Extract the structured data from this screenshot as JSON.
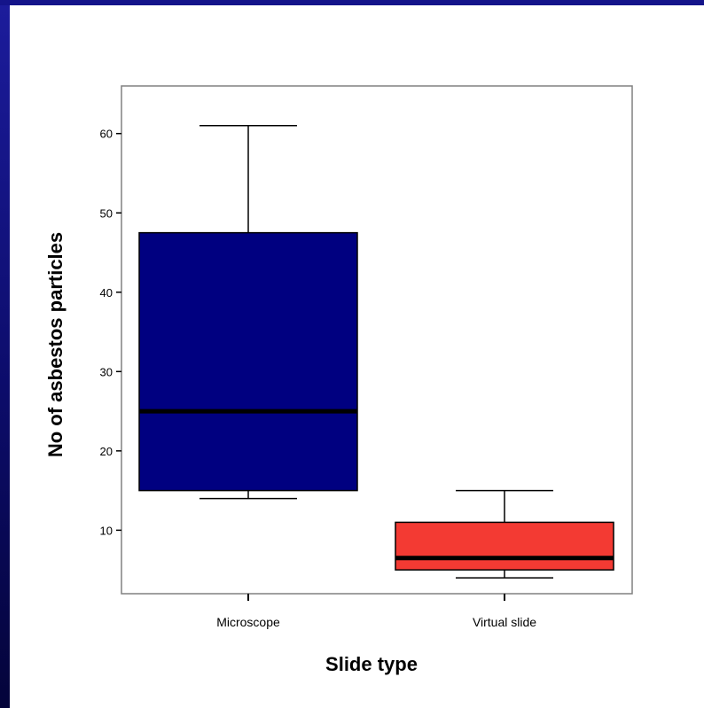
{
  "chart_data": {
    "type": "box",
    "xlabel": "Slide type",
    "ylabel": "No of asbestos particles",
    "ylim": [
      2,
      66
    ],
    "yticks": [
      10,
      20,
      30,
      40,
      50,
      60
    ],
    "categories": [
      "Microscope",
      "Virtual slide"
    ],
    "boxes": [
      {
        "category": "Microscope",
        "min": 14,
        "q1": 15,
        "median": 25,
        "q3": 47.5,
        "max": 61,
        "color": "#000080"
      },
      {
        "category": "Virtual slide",
        "min": 4,
        "q1": 5,
        "median": 6.5,
        "q3": 11,
        "max": 15,
        "color": "#f33a33"
      }
    ],
    "grid": false,
    "legend": "none"
  },
  "colors": {
    "background": "#ffffff",
    "slide_band": "#14148a"
  }
}
